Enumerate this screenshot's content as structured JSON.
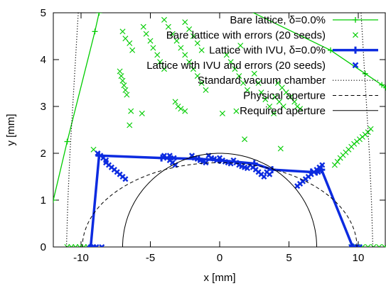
{
  "chart_data": {
    "type": "scatter",
    "xlabel": "x [mm]",
    "ylabel": "y [mm]",
    "xlim": [
      -12,
      12
    ],
    "ylim": [
      0,
      5
    ],
    "xticks": [
      "-10",
      "-5",
      "0",
      "5",
      "10"
    ],
    "xtick_values": [
      -10,
      -5,
      0,
      5,
      10
    ],
    "yticks": [
      "0",
      "1",
      "2",
      "3",
      "4",
      "5"
    ],
    "ytick_values": [
      0,
      1,
      2,
      3,
      4,
      5
    ],
    "legend_position": "top-right",
    "colors": {
      "green": "#00cc00",
      "blue": "#0c2be0",
      "black": "#000000"
    },
    "series": [
      {
        "name": "Bare lattice, δ=0.0%",
        "style": "line-plus",
        "color": "#00cc00",
        "points": [
          [
            -12.0,
            1.0
          ],
          [
            -11.0,
            2.25
          ],
          [
            -9.0,
            4.6
          ],
          [
            -8.7,
            5.0
          ],
          [
            0.0,
            5.35
          ],
          [
            8.0,
            4.2
          ],
          [
            10.5,
            3.7
          ],
          [
            11.7,
            3.46
          ],
          [
            12.0,
            3.4
          ]
        ]
      },
      {
        "name": "Bare lattice with errors (20 seeds)",
        "style": "cross",
        "color": "#00cc00",
        "points": [
          [
            -11.0,
            0.0
          ],
          [
            -10.7,
            0.0
          ],
          [
            -10.4,
            0.0
          ],
          [
            -10.1,
            0.0
          ],
          [
            -9.8,
            0.0
          ],
          [
            -9.5,
            0.0
          ],
          [
            9.5,
            0.0
          ],
          [
            9.9,
            0.0
          ],
          [
            10.3,
            0.0
          ],
          [
            10.7,
            0.0
          ],
          [
            11.1,
            0.0
          ],
          [
            11.5,
            0.0
          ],
          [
            11.9,
            0.0
          ],
          [
            -9.1,
            2.08
          ],
          [
            -7.0,
            4.6
          ],
          [
            -6.8,
            4.45
          ],
          [
            -6.5,
            4.35
          ],
          [
            -6.3,
            4.2
          ],
          [
            -7.2,
            3.75
          ],
          [
            -7.1,
            3.65
          ],
          [
            -7.0,
            3.55
          ],
          [
            -6.9,
            3.45
          ],
          [
            -6.8,
            3.35
          ],
          [
            -6.7,
            3.25
          ],
          [
            -6.4,
            2.9
          ],
          [
            -5.5,
            4.7
          ],
          [
            -5.3,
            4.55
          ],
          [
            -5.0,
            4.4
          ],
          [
            -4.8,
            4.25
          ],
          [
            -4.5,
            4.1
          ],
          [
            -4.3,
            3.95
          ],
          [
            -4.0,
            3.8
          ],
          [
            -4.0,
            4.85
          ],
          [
            -3.7,
            4.7
          ],
          [
            -3.4,
            4.55
          ],
          [
            -3.1,
            4.4
          ],
          [
            -2.8,
            4.25
          ],
          [
            -2.5,
            4.1
          ],
          [
            -2.2,
            3.95
          ],
          [
            -1.9,
            3.8
          ],
          [
            -1.6,
            3.65
          ],
          [
            -1.3,
            3.5
          ],
          [
            -1.0,
            3.35
          ],
          [
            -2.5,
            4.8
          ],
          [
            -2.2,
            4.65
          ],
          [
            -1.9,
            4.5
          ],
          [
            -1.6,
            4.35
          ],
          [
            -1.3,
            4.2
          ],
          [
            0.5,
            4.1
          ],
          [
            0.8,
            3.95
          ],
          [
            1.1,
            3.8
          ],
          [
            1.4,
            3.65
          ],
          [
            1.7,
            3.5
          ],
          [
            2.0,
            3.35
          ],
          [
            1.5,
            4.3
          ],
          [
            2.5,
            3.7
          ],
          [
            2.8,
            3.5
          ],
          [
            3.0,
            3.3
          ],
          [
            3.3,
            3.15
          ],
          [
            3.6,
            3.0
          ],
          [
            3.9,
            2.85
          ],
          [
            4.2,
            3.5
          ],
          [
            4.5,
            3.4
          ],
          [
            4.8,
            3.3
          ],
          [
            5.1,
            3.2
          ],
          [
            5.4,
            3.1
          ],
          [
            5.6,
            3.0
          ],
          [
            5.8,
            2.95
          ],
          [
            4.0,
            3.2
          ],
          [
            4.3,
            3.1
          ],
          [
            4.6,
            3.0
          ],
          [
            -3.2,
            3.1
          ],
          [
            -3.0,
            3.0
          ],
          [
            -2.8,
            2.95
          ],
          [
            -2.5,
            2.9
          ],
          [
            -5.6,
            2.85
          ],
          [
            -6.5,
            2.6
          ],
          [
            1.8,
            2.3
          ],
          [
            4.4,
            2.1
          ],
          [
            1.2,
            2.9
          ],
          [
            0.2,
            2.85
          ],
          [
            8.3,
            1.75
          ],
          [
            8.5,
            1.82
          ],
          [
            8.7,
            1.9
          ],
          [
            8.9,
            1.96
          ],
          [
            9.1,
            2.02
          ],
          [
            9.3,
            2.08
          ],
          [
            9.5,
            2.14
          ],
          [
            9.7,
            2.2
          ],
          [
            9.9,
            2.25
          ],
          [
            10.1,
            2.3
          ],
          [
            10.3,
            2.35
          ],
          [
            10.5,
            2.4
          ],
          [
            10.7,
            2.45
          ],
          [
            10.9,
            2.52
          ]
        ]
      },
      {
        "name": "Lattice with IVU, δ=0.0%",
        "style": "thick-line-plus",
        "color": "#0c2be0",
        "points": [
          [
            -9.3,
            0.0
          ],
          [
            -8.7,
            1.95
          ],
          [
            -4.2,
            1.9
          ],
          [
            -1.5,
            1.88
          ],
          [
            0.0,
            1.85
          ],
          [
            2.5,
            1.78
          ],
          [
            3.8,
            1.65
          ],
          [
            6.6,
            1.6
          ],
          [
            7.0,
            1.6
          ],
          [
            7.35,
            1.65
          ],
          [
            9.6,
            0.0
          ]
        ]
      },
      {
        "name": "Lattice with IVU and errors (20 seeds)",
        "style": "cross",
        "color": "#0c2be0",
        "points": [
          [
            -9.3,
            0.0
          ],
          [
            -9.1,
            0.0
          ],
          [
            -8.9,
            0.0
          ],
          [
            -8.5,
            0.0
          ],
          [
            9.5,
            0.0
          ],
          [
            9.7,
            0.0
          ],
          [
            9.9,
            0.0
          ],
          [
            10.1,
            0.0
          ],
          [
            -8.8,
            2.0
          ],
          [
            -8.6,
            1.95
          ],
          [
            -8.4,
            1.9
          ],
          [
            -8.2,
            1.85
          ],
          [
            -8.2,
            1.8
          ],
          [
            -8.0,
            1.75
          ],
          [
            -7.8,
            1.7
          ],
          [
            -7.6,
            1.65
          ],
          [
            -7.4,
            1.6
          ],
          [
            -7.2,
            1.55
          ],
          [
            -7.0,
            1.5
          ],
          [
            -6.8,
            1.45
          ],
          [
            -4.0,
            1.95
          ],
          [
            -3.8,
            1.9
          ],
          [
            -3.6,
            1.85
          ],
          [
            -3.4,
            1.8
          ],
          [
            -3.2,
            1.75
          ],
          [
            -3.6,
            1.95
          ],
          [
            -3.3,
            1.9
          ],
          [
            -2.0,
            1.95
          ],
          [
            -1.8,
            1.9
          ],
          [
            -1.6,
            1.88
          ],
          [
            -1.4,
            1.85
          ],
          [
            -1.2,
            1.82
          ],
          [
            -1.0,
            1.8
          ],
          [
            -0.8,
            1.95
          ],
          [
            -0.6,
            1.9
          ],
          [
            -0.4,
            1.88
          ],
          [
            -0.2,
            1.85
          ],
          [
            0.0,
            1.9
          ],
          [
            0.2,
            1.85
          ],
          [
            0.4,
            1.82
          ],
          [
            0.6,
            1.8
          ],
          [
            0.8,
            1.78
          ],
          [
            1.0,
            1.85
          ],
          [
            1.2,
            1.8
          ],
          [
            1.4,
            1.75
          ],
          [
            1.6,
            1.72
          ],
          [
            1.8,
            1.7
          ],
          [
            2.0,
            1.68
          ],
          [
            2.2,
            1.75
          ],
          [
            2.4,
            1.7
          ],
          [
            2.6,
            1.65
          ],
          [
            2.8,
            1.6
          ],
          [
            3.0,
            1.55
          ],
          [
            3.2,
            1.5
          ],
          [
            3.4,
            1.6
          ],
          [
            3.6,
            1.55
          ],
          [
            5.6,
            1.3
          ],
          [
            5.8,
            1.35
          ],
          [
            6.0,
            1.4
          ],
          [
            6.2,
            1.45
          ],
          [
            6.4,
            1.5
          ],
          [
            6.6,
            1.55
          ],
          [
            6.8,
            1.6
          ],
          [
            7.0,
            1.65
          ],
          [
            7.2,
            1.7
          ],
          [
            7.4,
            1.75
          ],
          [
            7.1,
            1.6
          ]
        ]
      },
      {
        "name": "Standard vacuum chamber",
        "style": "dotted",
        "color": "#000000",
        "segments": [
          [
            [
              -11.05,
              0.0
            ],
            [
              -10.95,
              1.0
            ],
            [
              -10.8,
              2.0
            ],
            [
              -10.6,
              3.0
            ],
            [
              -10.4,
              4.0
            ],
            [
              -10.2,
              5.0
            ]
          ],
          [
            [
              11.05,
              0.0
            ],
            [
              10.95,
              1.0
            ],
            [
              10.8,
              2.0
            ],
            [
              10.6,
              3.0
            ],
            [
              10.4,
              4.0
            ],
            [
              10.2,
              5.0
            ]
          ]
        ]
      },
      {
        "name": "Physical aperture",
        "style": "dashed",
        "color": "#000000",
        "ellipse": {
          "a": 9.9,
          "b": 1.8
        }
      },
      {
        "name": "Required aperture",
        "style": "solid",
        "color": "#000000",
        "ellipse": {
          "a": 7.0,
          "b": 2.0
        }
      }
    ]
  }
}
